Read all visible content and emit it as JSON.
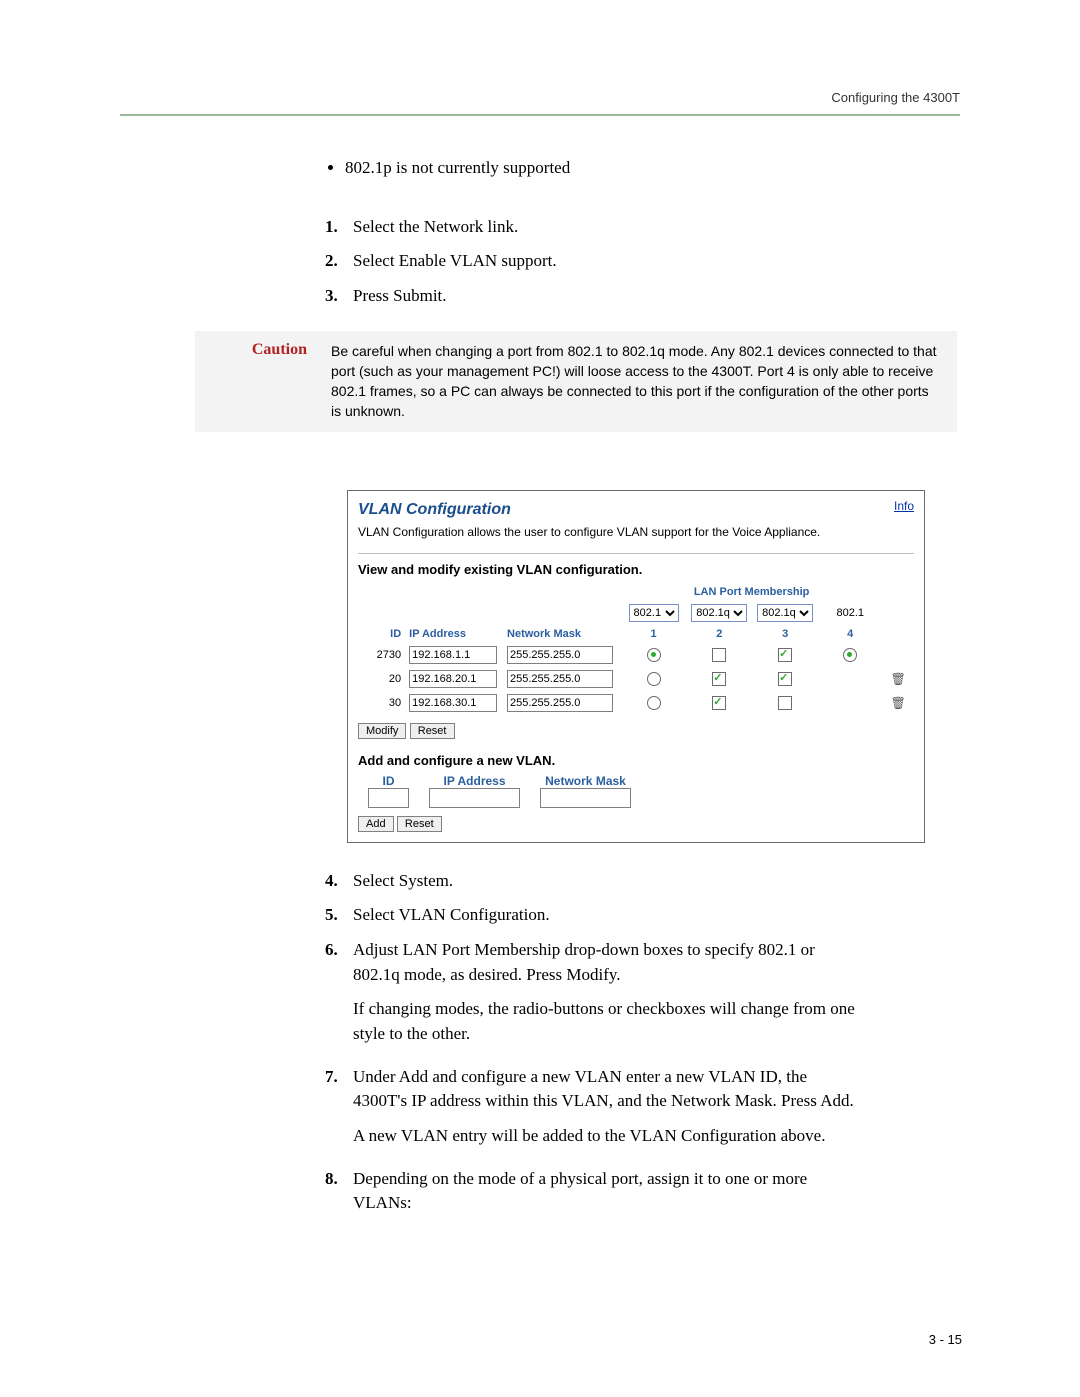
{
  "header": {
    "running": "Configuring the 4300T"
  },
  "bullets": [
    "802.1p is not currently supported"
  ],
  "steps_a": [
    "Select the Network link.",
    "Select Enable VLAN support.",
    "Press Submit."
  ],
  "caution": {
    "label": "Caution",
    "text": "Be careful when changing a port from 802.1 to 802.1q mode.  Any 802.1 devices connected to that port (such as your management PC!) will loose access to the 4300T.  Port 4 is only able to receive 802.1 frames, so a PC can always be connected to this port if the configuration of the other ports is unknown."
  },
  "screenshot": {
    "info_link": "Info",
    "title": "VLAN Configuration",
    "desc": "VLAN Configuration allows the user to configure VLAN support for the Voice Appliance.",
    "view_heading": "View and modify existing VLAN configuration.",
    "membership_heading": "LAN Port Membership",
    "port_selects": [
      "802.1",
      "802.1q",
      "802.1q",
      "802.1"
    ],
    "port_select_options": [
      "802.1",
      "802.1q"
    ],
    "columns": {
      "id": "ID",
      "ip": "IP Address",
      "mask": "Network Mask",
      "p1": "1",
      "p2": "2",
      "p3": "3",
      "p4": "4"
    },
    "rows": [
      {
        "id": "2730",
        "ip": "192.168.1.1",
        "mask": "255.255.255.0",
        "p1": "radio-sel",
        "p2": "chk",
        "p3": "chk-sel",
        "p4": "radio-sel",
        "trash": false
      },
      {
        "id": "20",
        "ip": "192.168.20.1",
        "mask": "255.255.255.0",
        "p1": "radio",
        "p2": "chk-sel",
        "p3": "chk-sel",
        "p4": "",
        "trash": true
      },
      {
        "id": "30",
        "ip": "192.168.30.1",
        "mask": "255.255.255.0",
        "p1": "radio",
        "p2": "chk-sel",
        "p3": "chk",
        "p4": "",
        "trash": true
      }
    ],
    "buttons": {
      "modify": "Modify",
      "reset": "Reset",
      "add": "Add"
    },
    "add_heading": "Add and configure a new VLAN.",
    "add_columns": {
      "id": "ID",
      "ip": "IP Address",
      "mask": "Network Mask"
    }
  },
  "steps_b": [
    {
      "main": "Select System."
    },
    {
      "main": "Select VLAN Configuration."
    },
    {
      "main": "Adjust LAN Port Membership drop-down boxes to specify 802.1 or 802.1q mode, as desired.  Press Modify.",
      "after": "If changing modes, the radio-buttons or checkboxes will change from one style to the other."
    },
    {
      "main": "Under Add and configure a new VLAN enter a new VLAN ID, the 4300T's IP address within this VLAN, and the Network Mask.  Press Add.",
      "after": "A new VLAN entry will be added to the VLAN Configuration above."
    },
    {
      "main": "Depending on the mode of a physical port, assign it to one or more VLANs:"
    }
  ],
  "page_number": "3 - 15",
  "colors": {
    "rule": "#9ab89a",
    "caution_bg": "#f3f3f3",
    "caution_label": "#b22222",
    "link_blue": "#0033aa",
    "head_blue": "#2a5fa0",
    "title_blue": "#1a4e8c",
    "check_green": "#2faa2f"
  }
}
